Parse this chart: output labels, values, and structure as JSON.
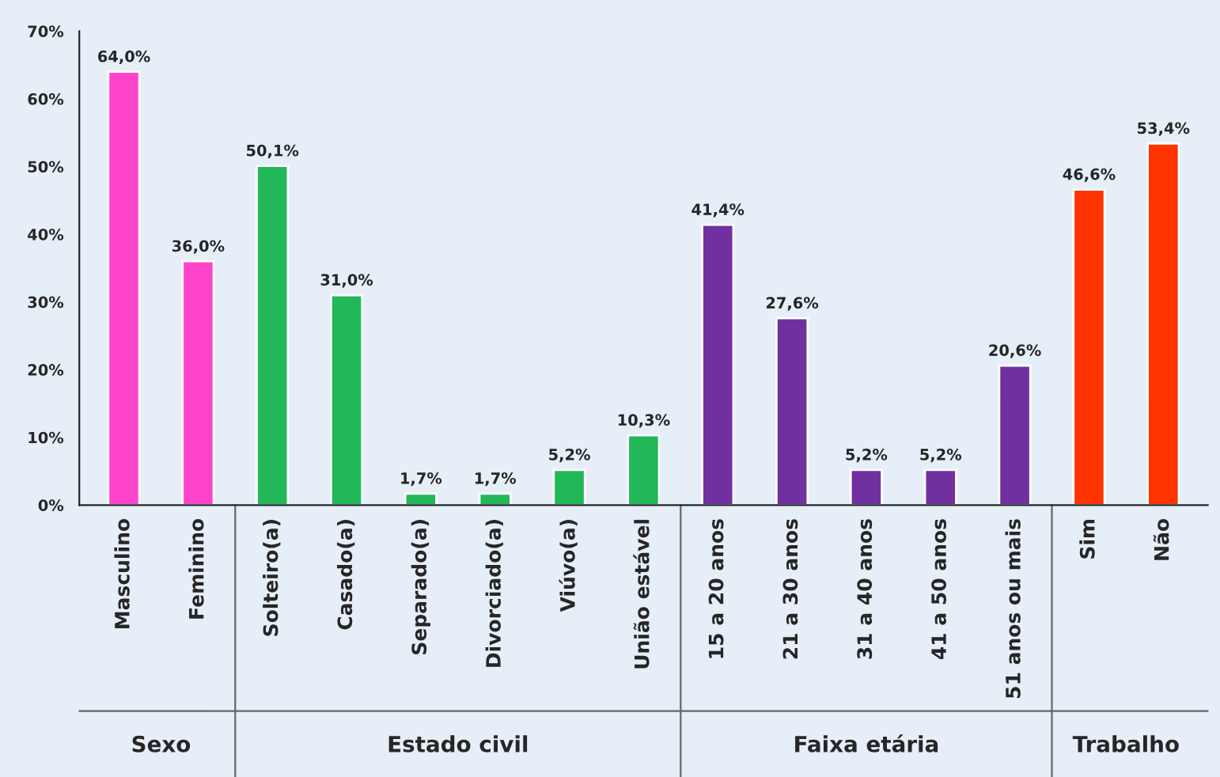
{
  "chart_data": {
    "type": "bar",
    "categories": [
      "Masculino",
      "Feminino",
      "Solteiro(a)",
      "Casado(a)",
      "Separado(a)",
      "Divorciado(a)",
      "Viúvo(a)",
      "União estável",
      "15 a 20 anos",
      "21 a 30 anos",
      "31 a 40 anos",
      "41 a 50 anos",
      "51 anos ou mais",
      "Sim",
      "Não"
    ],
    "series": [
      {
        "color": "#ff44cc",
        "values": [
          64.0,
          36.0,
          null,
          null,
          null,
          null,
          null,
          null,
          null,
          null,
          null,
          null,
          null,
          null,
          null
        ],
        "value_labels": [
          "64,0%",
          "36,0%",
          null,
          null,
          null,
          null,
          null,
          null,
          null,
          null,
          null,
          null,
          null,
          null,
          null
        ]
      },
      {
        "color": "#22b85a",
        "values": [
          null,
          null,
          50.1,
          31.0,
          1.7,
          1.7,
          5.2,
          10.3,
          null,
          null,
          null,
          null,
          null,
          null,
          null
        ],
        "value_labels": [
          null,
          null,
          "50,1%",
          "31,0%",
          "1,7%",
          "1,7%",
          "5,2%",
          "10,3%",
          null,
          null,
          null,
          null,
          null,
          null,
          null
        ]
      },
      {
        "color": "#7030a0",
        "values": [
          null,
          null,
          null,
          null,
          null,
          null,
          null,
          null,
          41.4,
          27.6,
          5.2,
          5.2,
          20.6,
          null,
          null
        ],
        "value_labels": [
          null,
          null,
          null,
          null,
          null,
          null,
          null,
          null,
          "41,4%",
          "27,6%",
          "5,2%",
          "5,2%",
          "20,6%",
          null,
          null
        ]
      },
      {
        "color": "#ff3300",
        "values": [
          null,
          null,
          null,
          null,
          null,
          null,
          null,
          null,
          null,
          null,
          null,
          null,
          null,
          46.6,
          53.4
        ],
        "value_labels": [
          null,
          null,
          null,
          null,
          null,
          null,
          null,
          null,
          null,
          null,
          null,
          null,
          null,
          "46,6%",
          "53,4%"
        ]
      }
    ],
    "ylim": [
      0,
      70
    ],
    "yticks": [
      {
        "value": 0,
        "label": "0%"
      },
      {
        "value": 10,
        "label": "10%"
      },
      {
        "value": 20,
        "label": "20%"
      },
      {
        "value": 30,
        "label": "30%"
      },
      {
        "value": 40,
        "label": "40%"
      },
      {
        "value": 50,
        "label": "50%"
      },
      {
        "value": 60,
        "label": "60%"
      },
      {
        "value": 70,
        "label": "70%"
      }
    ],
    "annotations": [
      "Sexo",
      "Estado civil",
      "Faixa etária",
      "Trabalho"
    ],
    "grid": false,
    "legend": false
  }
}
